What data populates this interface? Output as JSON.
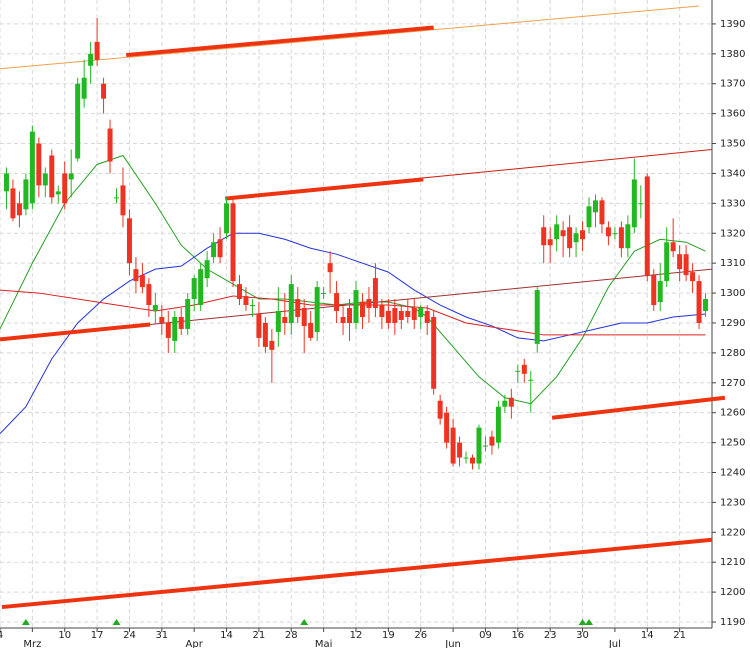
{
  "chart_data": {
    "type": "candlestick",
    "xlim": [
      0,
      110
    ],
    "ylim": [
      1188,
      1398
    ],
    "yticks": [
      1190,
      1200,
      1210,
      1220,
      1230,
      1240,
      1250,
      1260,
      1270,
      1280,
      1290,
      1300,
      1310,
      1320,
      1330,
      1340,
      1350,
      1360,
      1370,
      1380,
      1390
    ],
    "xticks": [
      {
        "value": 0,
        "label": "4"
      },
      {
        "value": 10,
        "label": "10"
      },
      {
        "value": 15,
        "label": "17"
      },
      {
        "value": 20,
        "label": "24"
      },
      {
        "value": 25,
        "label": "31"
      },
      {
        "value": 35,
        "label": "14"
      },
      {
        "value": 40,
        "label": "21"
      },
      {
        "value": 45,
        "label": "28"
      },
      {
        "value": 55,
        "label": "12"
      },
      {
        "value": 60,
        "label": "19"
      },
      {
        "value": 65,
        "label": "26"
      },
      {
        "value": 75,
        "label": "09"
      },
      {
        "value": 80,
        "label": "16"
      },
      {
        "value": 85,
        "label": "23"
      },
      {
        "value": 90,
        "label": "30"
      },
      {
        "value": 100,
        "label": "14"
      },
      {
        "value": 105,
        "label": "21"
      }
    ],
    "month_ticks": [
      {
        "value": 5,
        "label": "Mrz"
      },
      {
        "value": 30,
        "label": "Apr"
      },
      {
        "value": 50,
        "label": "Mai"
      },
      {
        "value": 70,
        "label": "Jun"
      },
      {
        "value": 95,
        "label": "Jul"
      }
    ],
    "grid": true,
    "up_color": "#22b822",
    "down_color": "#ee3322",
    "candles": [
      [
        1,
        1334,
        1342,
        1328,
        1340
      ],
      [
        2,
        1335,
        1338,
        1324,
        1325
      ],
      [
        3,
        1330,
        1334,
        1322,
        1326
      ],
      [
        4,
        1328,
        1340,
        1326,
        1338
      ],
      [
        5,
        1330,
        1356,
        1328,
        1354
      ],
      [
        6,
        1350,
        1352,
        1332,
        1336
      ],
      [
        7,
        1336,
        1342,
        1332,
        1340
      ],
      [
        8,
        1346,
        1348,
        1330,
        1332
      ],
      [
        9,
        1333,
        1336,
        1330,
        1334
      ],
      [
        10,
        1340,
        1344,
        1328,
        1330
      ],
      [
        11,
        1338,
        1348,
        1332,
        1340
      ],
      [
        12,
        1345,
        1372,
        1344,
        1370
      ],
      [
        13,
        1365,
        1378,
        1362,
        1372
      ],
      [
        14,
        1376,
        1384,
        1370,
        1380
      ],
      [
        15,
        1384,
        1392,
        1376,
        1378
      ],
      [
        16,
        1370,
        1372,
        1360,
        1365
      ],
      [
        17,
        1355,
        1358,
        1340,
        1344
      ],
      [
        18,
        1332,
        1335,
        1330,
        1332
      ],
      [
        19,
        1336,
        1342,
        1322,
        1326
      ],
      [
        20,
        1325,
        1328,
        1306,
        1310
      ],
      [
        21,
        1308,
        1312,
        1300,
        1304
      ],
      [
        22,
        1306,
        1310,
        1300,
        1302
      ],
      [
        23,
        1303,
        1305,
        1292,
        1296
      ],
      [
        24,
        1294,
        1300,
        1290,
        1296
      ],
      [
        25,
        1292,
        1296,
        1286,
        1290
      ],
      [
        26,
        1290,
        1294,
        1280,
        1285
      ],
      [
        27,
        1284,
        1294,
        1280,
        1292
      ],
      [
        28,
        1292,
        1295,
        1286,
        1288
      ],
      [
        29,
        1288,
        1300,
        1286,
        1298
      ],
      [
        30,
        1298,
        1306,
        1294,
        1305
      ],
      [
        31,
        1296,
        1310,
        1294,
        1308
      ],
      [
        32,
        1305,
        1314,
        1302,
        1311
      ],
      [
        33,
        1312,
        1320,
        1310,
        1317
      ],
      [
        34,
        1318,
        1322,
        1310,
        1312
      ],
      [
        35,
        1320,
        1332,
        1318,
        1330
      ],
      [
        36,
        1330,
        1332,
        1302,
        1304
      ],
      [
        37,
        1303,
        1306,
        1296,
        1298
      ],
      [
        38,
        1299,
        1302,
        1294,
        1296
      ],
      [
        39,
        1296,
        1298,
        1292,
        1296
      ],
      [
        40,
        1293,
        1297,
        1282,
        1285
      ],
      [
        41,
        1290,
        1292,
        1280,
        1282
      ],
      [
        42,
        1284,
        1288,
        1270,
        1281
      ],
      [
        43,
        1287,
        1302,
        1282,
        1294
      ],
      [
        44,
        1292,
        1300,
        1286,
        1290
      ],
      [
        45,
        1290,
        1306,
        1286,
        1303
      ],
      [
        46,
        1298,
        1302,
        1290,
        1292
      ],
      [
        47,
        1295,
        1298,
        1280,
        1289
      ],
      [
        48,
        1290,
        1294,
        1284,
        1285
      ],
      [
        49,
        1287,
        1304,
        1284,
        1302
      ],
      [
        50,
        1300,
        1302,
        1298,
        1300
      ],
      [
        51,
        1310,
        1314,
        1300,
        1307
      ],
      [
        52,
        1300,
        1304,
        1290,
        1294
      ],
      [
        53,
        1292,
        1296,
        1286,
        1290
      ],
      [
        54,
        1295,
        1298,
        1284,
        1290
      ],
      [
        55,
        1290,
        1304,
        1288,
        1301
      ],
      [
        56,
        1297,
        1300,
        1288,
        1292
      ],
      [
        57,
        1298,
        1302,
        1290,
        1295
      ],
      [
        58,
        1305,
        1310,
        1292,
        1295
      ],
      [
        59,
        1296,
        1298,
        1288,
        1292
      ],
      [
        60,
        1294,
        1298,
        1288,
        1290
      ],
      [
        61,
        1295,
        1298,
        1286,
        1290
      ],
      [
        62,
        1294,
        1296,
        1288,
        1291
      ],
      [
        63,
        1294,
        1298,
        1290,
        1292
      ],
      [
        64,
        1295,
        1298,
        1288,
        1291
      ],
      [
        65,
        1292,
        1296,
        1288,
        1295
      ],
      [
        66,
        1294,
        1296,
        1286,
        1290
      ],
      [
        67,
        1292,
        1294,
        1266,
        1268
      ],
      [
        68,
        1264,
        1266,
        1256,
        1258
      ],
      [
        69,
        1260,
        1262,
        1248,
        1250
      ],
      [
        70,
        1255,
        1258,
        1242,
        1243
      ],
      [
        71,
        1250,
        1252,
        1242,
        1245
      ],
      [
        72,
        1245,
        1247,
        1243,
        1245
      ],
      [
        73,
        1245,
        1246,
        1241,
        1243
      ],
      [
        74,
        1243,
        1256,
        1241,
        1255
      ],
      [
        75,
        1249,
        1252,
        1247,
        1249
      ],
      [
        76,
        1252,
        1254,
        1246,
        1249
      ],
      [
        77,
        1250,
        1264,
        1248,
        1262
      ],
      [
        78,
        1262,
        1266,
        1260,
        1264
      ],
      [
        79,
        1265,
        1268,
        1258,
        1262
      ],
      [
        80,
        1274,
        1276,
        1270,
        1274
      ],
      [
        81,
        1276,
        1278,
        1270,
        1273
      ],
      [
        82,
        1271,
        1274,
        1260,
        1271
      ],
      [
        83,
        1283,
        1302,
        1280,
        1301
      ],
      [
        84,
        1322,
        1326,
        1310,
        1316
      ],
      [
        85,
        1318,
        1322,
        1310,
        1316
      ],
      [
        86,
        1318,
        1326,
        1314,
        1323
      ],
      [
        87,
        1321,
        1324,
        1312,
        1319
      ],
      [
        88,
        1322,
        1326,
        1312,
        1315
      ],
      [
        89,
        1317,
        1322,
        1312,
        1320
      ],
      [
        90,
        1321,
        1324,
        1314,
        1318
      ],
      [
        91,
        1322,
        1332,
        1320,
        1329
      ],
      [
        92,
        1327,
        1333,
        1322,
        1331
      ],
      [
        93,
        1331,
        1332,
        1320,
        1323
      ],
      [
        94,
        1322,
        1324,
        1316,
        1319
      ],
      [
        95,
        1320,
        1322,
        1318,
        1320
      ],
      [
        96,
        1322,
        1324,
        1312,
        1315
      ],
      [
        97,
        1315,
        1326,
        1312,
        1323
      ],
      [
        98,
        1322,
        1345,
        1320,
        1338
      ],
      [
        99,
        1330,
        1336,
        1325,
        1330
      ],
      [
        100,
        1339,
        1340,
        1304,
        1306
      ],
      [
        101,
        1306,
        1308,
        1294,
        1296
      ],
      [
        102,
        1297,
        1310,
        1294,
        1304
      ],
      [
        103,
        1304,
        1322,
        1302,
        1317
      ],
      [
        104,
        1317,
        1325,
        1312,
        1314
      ],
      [
        105,
        1313,
        1316,
        1304,
        1308
      ],
      [
        106,
        1313,
        1316,
        1304,
        1306
      ],
      [
        107,
        1307,
        1310,
        1300,
        1304
      ],
      [
        108,
        1304,
        1306,
        1288,
        1290
      ],
      [
        109,
        1294,
        1300,
        1292,
        1298
      ]
    ],
    "series": [
      {
        "color": "#22a022",
        "x": [
          0,
          5,
          10,
          15,
          19,
          24,
          28,
          32,
          36,
          40,
          44,
          48,
          52,
          56,
          60,
          64,
          66,
          70,
          74,
          78,
          82,
          86,
          90,
          94,
          98,
          102,
          106,
          109
        ],
        "values": [
          1288,
          1310,
          1330,
          1343,
          1346,
          1330,
          1316,
          1308,
          1303,
          1298,
          1298,
          1297,
          1296,
          1297,
          1297,
          1295,
          1292,
          1282,
          1272,
          1265,
          1263,
          1272,
          1285,
          1302,
          1314,
          1318,
          1317,
          1314
        ]
      },
      {
        "color": "#2233dd",
        "x": [
          0,
          4,
          8,
          12,
          16,
          20,
          24,
          28,
          32,
          36,
          40,
          44,
          48,
          52,
          56,
          60,
          64,
          68,
          72,
          76,
          80,
          84,
          88,
          92,
          96,
          100,
          104,
          109
        ],
        "values": [
          1253,
          1262,
          1278,
          1290,
          1298,
          1304,
          1308,
          1309,
          1315,
          1320,
          1320,
          1318,
          1315,
          1313,
          1310,
          1307,
          1301,
          1296,
          1292,
          1289,
          1285,
          1284,
          1286,
          1288,
          1290,
          1290,
          1292,
          1293
        ]
      },
      {
        "color": "#dd2222",
        "x": [
          0,
          6,
          12,
          18,
          24,
          30,
          36,
          42,
          48,
          54,
          60,
          66,
          72,
          78,
          84,
          90,
          96,
          102,
          109
        ],
        "values": [
          1301,
          1300,
          1298,
          1296,
          1294,
          1296,
          1299,
          1298,
          1296,
          1296,
          1296,
          1295,
          1290,
          1288,
          1286,
          1286,
          1286,
          1286,
          1286
        ]
      }
    ],
    "lines": [
      {
        "color": "#f0a050",
        "width": 1,
        "x": [
          0,
          108
        ],
        "values": [
          1375,
          1396
        ]
      },
      {
        "color": "#ee3311",
        "width": 4,
        "x": [
          19.5,
          67
        ],
        "values": [
          1379.6,
          1388.8
        ]
      },
      {
        "color": "#d02010",
        "width": 1,
        "x": [
          34.8,
          110
        ],
        "values": [
          1332,
          1348
        ]
      },
      {
        "color": "#ee3311",
        "width": 4,
        "x": [
          34.8,
          65.4
        ],
        "values": [
          1331.6,
          1338
        ]
      },
      {
        "color": "#ee3311",
        "width": 4,
        "x": [
          0,
          23.2
        ],
        "values": [
          1284.5,
          1289.5
        ]
      },
      {
        "color": "#a03030",
        "width": 1,
        "x": [
          23.2,
          110
        ],
        "values": [
          1289.5,
          1308
        ]
      },
      {
        "color": "#ee3311",
        "width": 4,
        "x": [
          85.3,
          112
        ],
        "values": [
          1258.3,
          1265
        ]
      },
      {
        "color": "#ee3311",
        "width": 4,
        "x": [
          0.3,
          110
        ],
        "values": [
          1195,
          1217.5
        ]
      }
    ],
    "signals": [
      4,
      18,
      47,
      90,
      91
    ],
    "signal_color": "#22aa22"
  }
}
